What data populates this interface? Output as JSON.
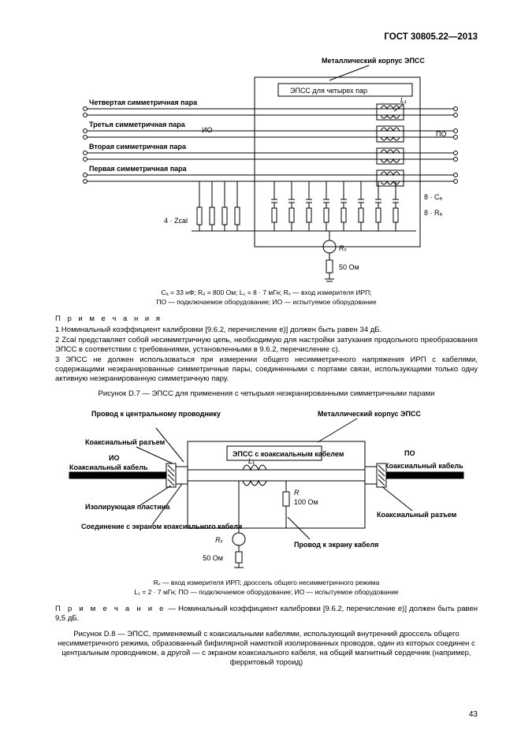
{
  "header": "ГОСТ 30805.22—2013",
  "fig1": {
    "topLabel": "Металлический корпус ЭПСС",
    "innerBox": "ЭПСС для четырех пар",
    "rowLabels": [
      "Четвертая симметричная пара",
      "Третья симметричная пара",
      "Вторая симметричная пара",
      "Первая симметричная пара"
    ],
    "leftRole": "ИО",
    "rightRole": "ПО",
    "l1": "L₁",
    "cal": "8 · Cₐ",
    "ra": "8 · Rₐ",
    "z": "4 · Zcal",
    "rx": "Rₓ",
    "ohm": "50 Ом"
  },
  "caption1a": "Cₐ = 33 нФ; Rₐ = 800 Ом; L₁ = 8 · 7 мГн; Rₓ — вход измерителя ИРП;",
  "caption1b": "ПО — подключаемое оборудование; ИО — испытуемое оборудование",
  "notesTitle": "П р и м е ч а н и я",
  "notes": [
    "1 Номинальный коэффициент калибровки [9.6.2, перечисление е)] должен быть равен 34 дБ.",
    "2 Zcal представляет собой несимметричную цепь, необходимую для настройки затухания продольного преобразования ЭПСС в соответствии с требованиями, установленными в 9.6.2, перечисление c).",
    "3 ЭПСС не должен использоваться при измерении общего несимметричного напряжения ИРП с кабелями, содержащими неэкранированные симметричные пары, соединенными с портами связи, использующими только одну активную неэкранированную симметричную пару."
  ],
  "figCaption1": "Рисунок D.7 — ЭПСС для применения с четырьмя неэкранированными симметричными парами",
  "fig2": {
    "lblCenterConductor": "Провод к центральному проводнику",
    "lblMetalCase": "Металлический корпус ЭПСС",
    "lblCoaxConn": "Коаксиальный разъем",
    "lblCoaxCable": "Коаксиальный кабель",
    "lblIO": "ИО",
    "lblPO": "ПО",
    "lblEpssCoax": "ЭПСС с коаксиальным кабелем",
    "lblInsulator": "Изолирующая пластина",
    "lblShieldConn": "Соединение с экраном коаксиального кабеля",
    "lblShieldWire": "Провод к экрану кабеля",
    "l1": "L₁",
    "r": "R",
    "r100": "100 Ом",
    "rx": "Rₓ",
    "r50": "50 Ом"
  },
  "caption2a": "Rₓ — вход измерителя ИРП; дроссель общего несимметричного режима",
  "caption2b": "L₁ = 2 · 7 мГн; ПО — подключаемое оборудование; ИО — испытуемое оборудование",
  "singleNote": "— Номинальный коэффициент калибровки [9.6.2, перечисление e)] должен быть равен 9,5 дБ.",
  "singleNotePrefix": "П р и м е ч а н и е",
  "figCaption2": "Рисунок D.8 — ЭПСС, применяемый с коаксиальными кабелями, использующий внутренний дроссель общего несимметричного режима, образованный бифилярной намоткой изолированных проводов, один из которых соединен с центральным проводником, а другой — с экраном коаксиального кабеля, на общий магнитный сердечник (например, ферритовый тороид)",
  "pageNumber": "43",
  "colors": {
    "stroke": "#000000",
    "bg": "#ffffff"
  }
}
